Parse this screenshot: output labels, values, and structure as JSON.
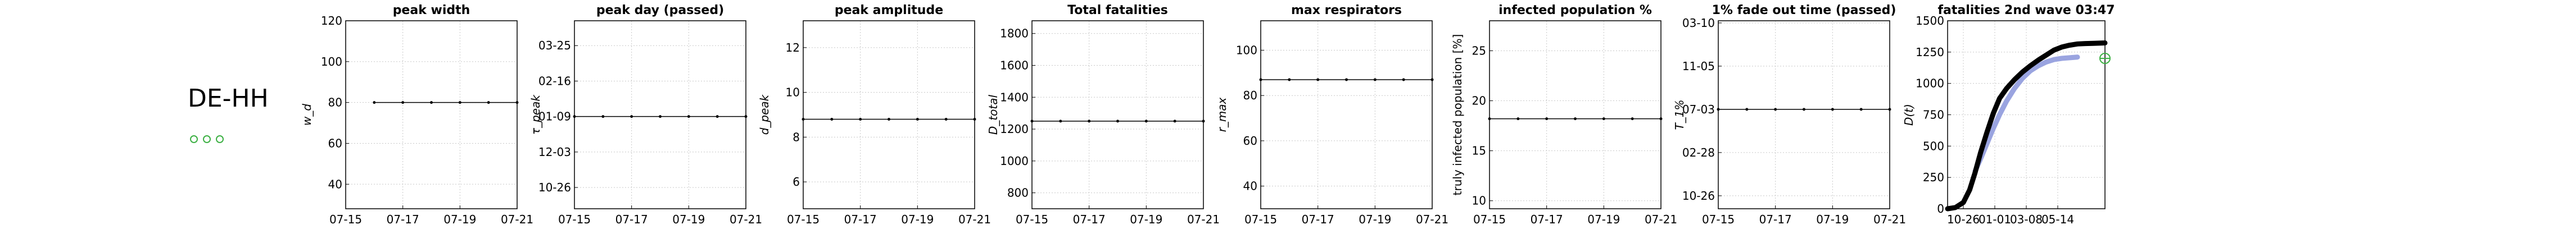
{
  "region": "DE-HH",
  "status_dots": 3,
  "colors": {
    "series_main": "#000000",
    "series_fit": "#9aa4e0",
    "marker": "#3cb043",
    "grid": "#c8c8c8"
  },
  "chart_data": [
    {
      "type": "line",
      "title": "peak width",
      "ylabel": "w_d",
      "ytick_labels": [
        "40",
        "60",
        "80",
        "100",
        "120"
      ],
      "ytick_values": [
        40,
        60,
        80,
        100,
        120
      ],
      "ylim": [
        28,
        120
      ],
      "xtick_labels": [
        "07-15",
        "07-17",
        "07-19",
        "07-21"
      ],
      "x": [
        0,
        1,
        2,
        3,
        4,
        5,
        6
      ],
      "xlim": [
        0,
        6
      ],
      "xtick_values": [
        0,
        2,
        4,
        6
      ],
      "values": [
        null,
        80,
        80,
        80,
        80,
        80,
        80
      ],
      "grid": true
    },
    {
      "type": "line",
      "title": "peak day (passed)",
      "ylabel": "τ_peak",
      "ytick_labels": [
        "10-26",
        "12-03",
        "01-09",
        "02-16",
        "03-25"
      ],
      "ytick_values": [
        0,
        1,
        2,
        3,
        4
      ],
      "ylim": [
        -0.6,
        4.7
      ],
      "xtick_labels": [
        "07-15",
        "07-17",
        "07-19",
        "07-21"
      ],
      "x": [
        0,
        1,
        2,
        3,
        4,
        5,
        6
      ],
      "xlim": [
        0,
        6
      ],
      "xtick_values": [
        0,
        2,
        4,
        6
      ],
      "values": [
        2,
        2,
        2,
        2,
        2,
        2,
        2
      ],
      "grid": true
    },
    {
      "type": "line",
      "title": "peak amplitude",
      "ylabel": "d_peak",
      "ytick_labels": [
        "6",
        "8",
        "10",
        "12"
      ],
      "ytick_values": [
        6,
        8,
        10,
        12
      ],
      "ylim": [
        4.8,
        13.2
      ],
      "xtick_labels": [
        "07-15",
        "07-17",
        "07-19",
        "07-21"
      ],
      "x": [
        0,
        1,
        2,
        3,
        4,
        5,
        6
      ],
      "xlim": [
        0,
        6
      ],
      "xtick_values": [
        0,
        2,
        4,
        6
      ],
      "values": [
        8.8,
        8.8,
        8.8,
        8.8,
        8.8,
        8.8,
        8.8
      ],
      "grid": true
    },
    {
      "type": "line",
      "title": "Total fatalities",
      "ylabel": "D_total",
      "ytick_labels": [
        "800",
        "1000",
        "1200",
        "1400",
        "1600",
        "1800"
      ],
      "ytick_values": [
        800,
        1000,
        1200,
        1400,
        1600,
        1800
      ],
      "ylim": [
        700,
        1880
      ],
      "xtick_labels": [
        "07-15",
        "07-17",
        "07-19",
        "07-21"
      ],
      "x": [
        0,
        1,
        2,
        3,
        4,
        5,
        6
      ],
      "xlim": [
        0,
        6
      ],
      "xtick_values": [
        0,
        2,
        4,
        6
      ],
      "values": [
        1250,
        1250,
        1250,
        1250,
        1250,
        1250,
        1250
      ],
      "grid": true
    },
    {
      "type": "line",
      "title": "max respirators",
      "ylabel": "r_max",
      "ytick_labels": [
        "40",
        "60",
        "80",
        "100"
      ],
      "ytick_values": [
        40,
        60,
        80,
        100
      ],
      "ylim": [
        30,
        113
      ],
      "xtick_labels": [
        "07-15",
        "07-17",
        "07-19",
        "07-21"
      ],
      "x": [
        0,
        1,
        2,
        3,
        4,
        5,
        6
      ],
      "xlim": [
        0,
        6
      ],
      "xtick_values": [
        0,
        2,
        4,
        6
      ],
      "values": [
        87,
        87,
        87,
        87,
        87,
        87,
        87
      ],
      "grid": true
    },
    {
      "type": "line",
      "title": "infected population %",
      "ylabel": "truly infected population [%]",
      "ytick_labels": [
        "10",
        "15",
        "20",
        "25"
      ],
      "ytick_values": [
        10,
        15,
        20,
        25
      ],
      "ylim": [
        9.2,
        28
      ],
      "xtick_labels": [
        "07-15",
        "07-17",
        "07-19",
        "07-21"
      ],
      "x": [
        0,
        1,
        2,
        3,
        4,
        5,
        6
      ],
      "xlim": [
        0,
        6
      ],
      "xtick_values": [
        0,
        2,
        4,
        6
      ],
      "values": [
        18.2,
        18.2,
        18.2,
        18.2,
        18.2,
        18.2,
        18.2
      ],
      "grid": true
    },
    {
      "type": "line",
      "title": "1% fade out time (passed)",
      "ylabel": "T_1%",
      "ytick_labels": [
        "10-26",
        "02-28",
        "07-03",
        "11-05",
        "03-10"
      ],
      "ytick_values": [
        0,
        1,
        2,
        3,
        4
      ],
      "ylim": [
        -0.3,
        4.05
      ],
      "xtick_labels": [
        "07-15",
        "07-17",
        "07-19",
        "07-21"
      ],
      "x": [
        0,
        1,
        2,
        3,
        4,
        5,
        6
      ],
      "xlim": [
        0,
        6
      ],
      "xtick_values": [
        0,
        2,
        4,
        6
      ],
      "values": [
        2,
        2,
        2,
        2,
        2,
        2,
        2
      ],
      "grid": true
    },
    {
      "type": "line",
      "title": "fatalities 2nd wave 03:47",
      "ylabel": "D(t)",
      "ytick_labels": [
        "0",
        "250",
        "500",
        "750",
        "1000",
        "1250",
        "1500"
      ],
      "ytick_values": [
        0,
        250,
        500,
        750,
        1000,
        1250,
        1500
      ],
      "ylim": [
        0,
        1500
      ],
      "xtick_labels": [
        "10-26",
        "01-01",
        "03-08",
        "05-14"
      ],
      "xtick_values": [
        20,
        60,
        100,
        140
      ],
      "xlim": [
        0,
        200
      ],
      "series": [
        {
          "x": [
            0,
            10,
            20,
            28,
            35,
            42,
            50,
            58,
            66,
            75,
            85,
            95,
            105,
            115,
            125,
            135,
            145,
            155,
            165,
            175,
            185,
            195,
            200
          ],
          "values": [
            0,
            10,
            50,
            150,
            290,
            450,
            610,
            760,
            880,
            960,
            1030,
            1090,
            1140,
            1185,
            1225,
            1265,
            1290,
            1305,
            1315,
            1318,
            1320,
            1322,
            1323
          ]
        },
        {
          "x": [
            35,
            42,
            50,
            58,
            66,
            75,
            85,
            95,
            105,
            115,
            125,
            135,
            145,
            155,
            165
          ],
          "values": [
            300,
            400,
            520,
            640,
            750,
            860,
            960,
            1040,
            1100,
            1140,
            1170,
            1190,
            1200,
            1205,
            1210
          ]
        }
      ],
      "marker": {
        "x": 200,
        "value": 1200
      },
      "grid": true
    }
  ]
}
